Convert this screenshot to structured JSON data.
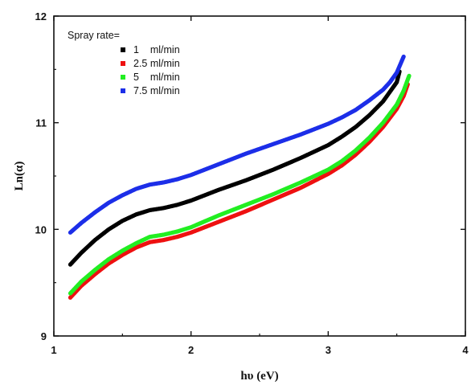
{
  "chart_data": {
    "type": "scatter",
    "xlabel": "hυ (eV)",
    "ylabel": "Ln(α)",
    "xlim": [
      1,
      4
    ],
    "ylim": [
      9,
      12
    ],
    "xticks": [
      "1",
      "2",
      "3",
      "4"
    ],
    "yticks": [
      "9",
      "10",
      "11",
      "12"
    ],
    "grid": false,
    "legend": {
      "title": "Spray rate=",
      "placement": "top-left",
      "entries": [
        "1    ml/min",
        "2.5 ml/min",
        "5    ml/min",
        "7.5 ml/min"
      ]
    },
    "series": [
      {
        "name": "1    ml/min",
        "color": "#000000",
        "x": [
          1.12,
          1.2,
          1.3,
          1.4,
          1.5,
          1.6,
          1.7,
          1.8,
          1.9,
          2.0,
          2.2,
          2.4,
          2.6,
          2.8,
          3.0,
          3.1,
          3.2,
          3.3,
          3.4,
          3.45,
          3.5,
          3.52
        ],
        "y": [
          9.67,
          9.78,
          9.9,
          10.0,
          10.08,
          10.14,
          10.18,
          10.2,
          10.23,
          10.27,
          10.37,
          10.46,
          10.56,
          10.67,
          10.79,
          10.87,
          10.96,
          11.07,
          11.2,
          11.29,
          11.38,
          11.48
        ]
      },
      {
        "name": "2.5 ml/min",
        "color": "#ee1111",
        "x": [
          1.12,
          1.2,
          1.3,
          1.4,
          1.5,
          1.6,
          1.7,
          1.8,
          1.9,
          2.0,
          2.2,
          2.4,
          2.6,
          2.8,
          3.0,
          3.1,
          3.2,
          3.3,
          3.4,
          3.5,
          3.55,
          3.58
        ],
        "y": [
          9.36,
          9.47,
          9.58,
          9.68,
          9.76,
          9.83,
          9.88,
          9.9,
          9.93,
          9.97,
          10.07,
          10.17,
          10.28,
          10.39,
          10.52,
          10.6,
          10.7,
          10.82,
          10.96,
          11.13,
          11.25,
          11.36
        ]
      },
      {
        "name": "5    ml/min",
        "color": "#22ee22",
        "x": [
          1.12,
          1.2,
          1.3,
          1.4,
          1.5,
          1.6,
          1.7,
          1.8,
          1.9,
          2.0,
          2.2,
          2.4,
          2.6,
          2.8,
          3.0,
          3.1,
          3.2,
          3.3,
          3.4,
          3.5,
          3.55,
          3.59
        ],
        "y": [
          9.4,
          9.51,
          9.62,
          9.72,
          9.8,
          9.87,
          9.93,
          9.95,
          9.98,
          10.02,
          10.13,
          10.23,
          10.33,
          10.44,
          10.56,
          10.64,
          10.74,
          10.86,
          11.0,
          11.17,
          11.3,
          11.44
        ]
      },
      {
        "name": "7.5 ml/min",
        "color": "#1c2ee8",
        "x": [
          1.12,
          1.2,
          1.3,
          1.4,
          1.5,
          1.6,
          1.7,
          1.8,
          1.9,
          2.0,
          2.2,
          2.4,
          2.6,
          2.8,
          3.0,
          3.1,
          3.2,
          3.3,
          3.4,
          3.45,
          3.5,
          3.55
        ],
        "y": [
          9.97,
          10.06,
          10.16,
          10.25,
          10.32,
          10.38,
          10.42,
          10.44,
          10.47,
          10.51,
          10.61,
          10.71,
          10.8,
          10.89,
          10.99,
          11.05,
          11.12,
          11.21,
          11.31,
          11.38,
          11.47,
          11.62
        ]
      }
    ]
  }
}
